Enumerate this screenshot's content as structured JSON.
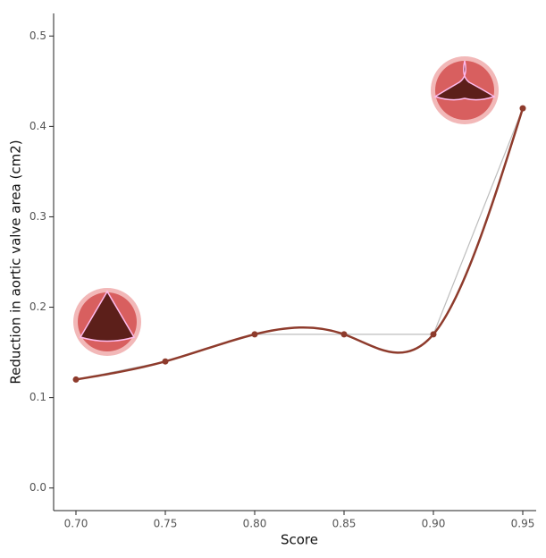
{
  "chart_data": {
    "type": "line",
    "x_label": "Score",
    "y_label": "Reduction in aortic valve area (cm2)",
    "x": [
      0.7,
      0.75,
      0.8,
      0.85,
      0.9,
      0.95
    ],
    "series": [
      {
        "values": [
          0.12,
          0.14,
          0.17,
          0.17,
          0.17,
          0.42
        ],
        "color": "#8e3b2c"
      }
    ],
    "reference_line_color": "#bdbdbd",
    "smooth": true,
    "xlim": [
      0.6875,
      0.9575
    ],
    "xticks": [
      {
        "value": 0.7,
        "label": "0.70"
      },
      {
        "value": 0.75,
        "label": "0.75"
      },
      {
        "value": 0.8,
        "label": "0.80"
      },
      {
        "value": 0.85,
        "label": "0.85"
      },
      {
        "value": 0.9,
        "label": "0.90"
      },
      {
        "value": 0.95,
        "label": "0.95"
      }
    ],
    "ylim": [
      -0.025,
      0.525
    ],
    "yticks": [
      {
        "value": 0,
        "label": "0.0"
      },
      0.1,
      0.2,
      0.3,
      0.4,
      0.5
    ]
  }
}
